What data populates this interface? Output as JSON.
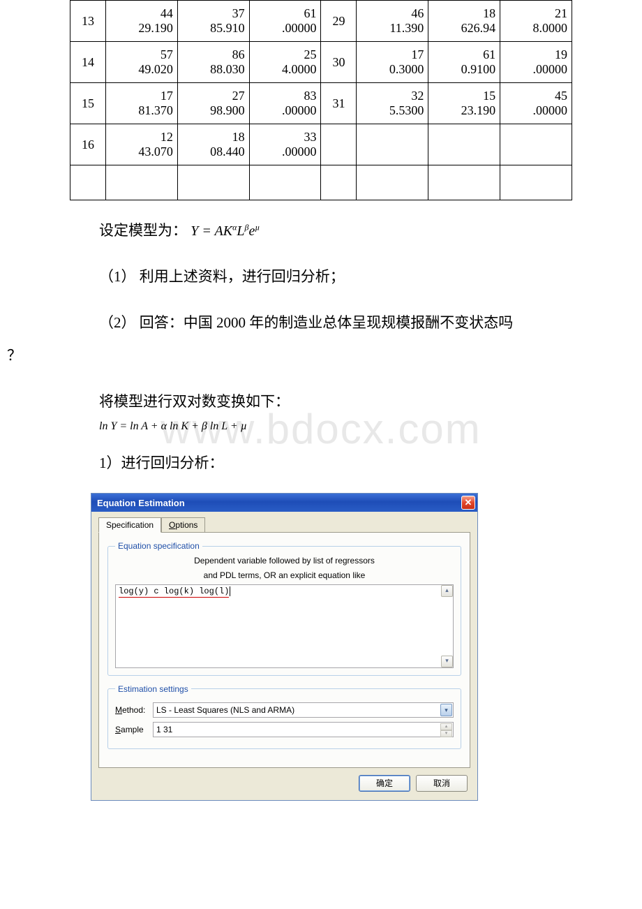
{
  "table": {
    "rows": [
      [
        "13",
        "44\n29.190",
        "37\n85.910",
        "61\n.00000",
        "29",
        "46\n11.390",
        "18\n626.94",
        "21\n8.0000"
      ],
      [
        "14",
        "57\n49.020",
        "86\n88.030",
        "25\n4.0000",
        "30",
        "17\n0.3000",
        "61\n0.9100",
        "19\n.00000"
      ],
      [
        "15",
        "17\n81.370",
        "27\n98.900",
        "83\n.00000",
        "31",
        "32\n5.5300",
        "15\n23.190",
        "45\n.00000"
      ],
      [
        "16",
        "12\n43.070",
        "18\n08.440",
        "33\n.00000",
        "",
        "",
        "",
        ""
      ],
      [
        "",
        "",
        "",
        "",
        "",
        "",
        "",
        ""
      ]
    ]
  },
  "text": {
    "model_intro": "设定模型为：",
    "model_formula": "Y = AK<sup>α</sup>L<sup>β</sup>e<sup>µ</sup>",
    "q1": "（1） 利用上述资料，进行回归分析；",
    "q2": "（2） 回答：中国 2000 年的制造业总体呈现规模报酬不变状态吗",
    "qmark": "？",
    "transform_intro": "将模型进行双对数变换如下：",
    "transform_formula": "ln Y = ln A + α ln K + β ln L + µ",
    "regress_heading": "1）进行回归分析："
  },
  "dialog": {
    "title": "Equation Estimation",
    "tab_spec": "Specification",
    "tab_options": "Options",
    "legend_spec": "Equation specification",
    "hint1": "Dependent variable followed by list of regressors",
    "hint2": "and PDL terms, OR an explicit equation like",
    "equation": "log(y) c log(k) log(l)",
    "legend_settings": "Estimation settings",
    "method_label": "Method:",
    "method_value": "LS  -  Least Squares (NLS and ARMA)",
    "sample_label": "Sample",
    "sample_value": "1 31",
    "ok": "确定",
    "cancel": "取消"
  },
  "watermark": "www.bdocx.com"
}
